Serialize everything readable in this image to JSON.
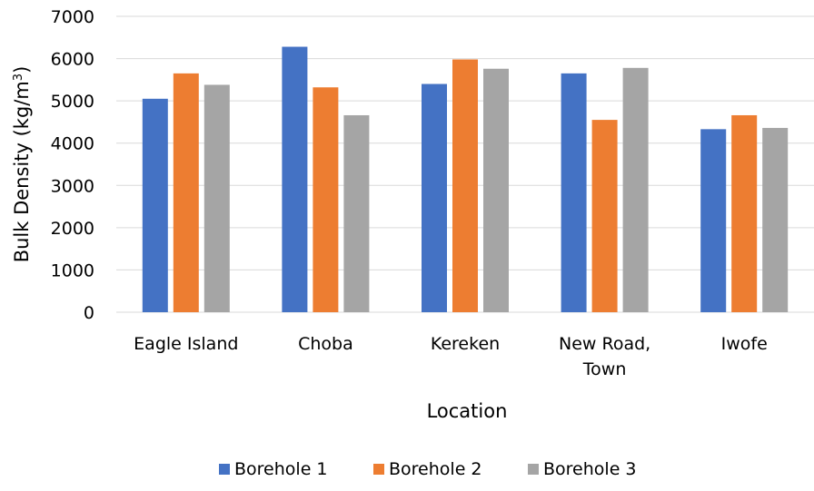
{
  "chart_data": {
    "type": "bar",
    "title": "",
    "xlabel": "Location",
    "ylabel": "Bulk Density (kg/m³)",
    "ylabel_parts": {
      "base": "Bulk Density (kg/m",
      "sup": "3",
      "close": ")"
    },
    "ylim": [
      0,
      7000
    ],
    "yticks": [
      0,
      1000,
      2000,
      3000,
      4000,
      5000,
      6000,
      7000
    ],
    "grid": true,
    "legend_position": "bottom",
    "categories": [
      "Eagle Island",
      "Choba",
      "Kereken",
      "New Road, Town",
      "Iwofe"
    ],
    "category_label_lines": [
      [
        "Eagle Island"
      ],
      [
        "Choba"
      ],
      [
        "Kereken"
      ],
      [
        "New Road,",
        "Town"
      ],
      [
        "Iwofe"
      ]
    ],
    "series": [
      {
        "name": "Borehole 1",
        "color": "#4472C4",
        "values": [
          5050,
          6280,
          5400,
          5650,
          4330
        ]
      },
      {
        "name": "Borehole 2",
        "color": "#ED7D31",
        "values": [
          5650,
          5320,
          5980,
          4550,
          4660
        ]
      },
      {
        "name": "Borehole 3",
        "color": "#A5A5A5",
        "values": [
          5380,
          4660,
          5760,
          5780,
          4360
        ]
      }
    ]
  },
  "colors": {
    "gridline": "#d9d9d9",
    "text": "#000000"
  }
}
